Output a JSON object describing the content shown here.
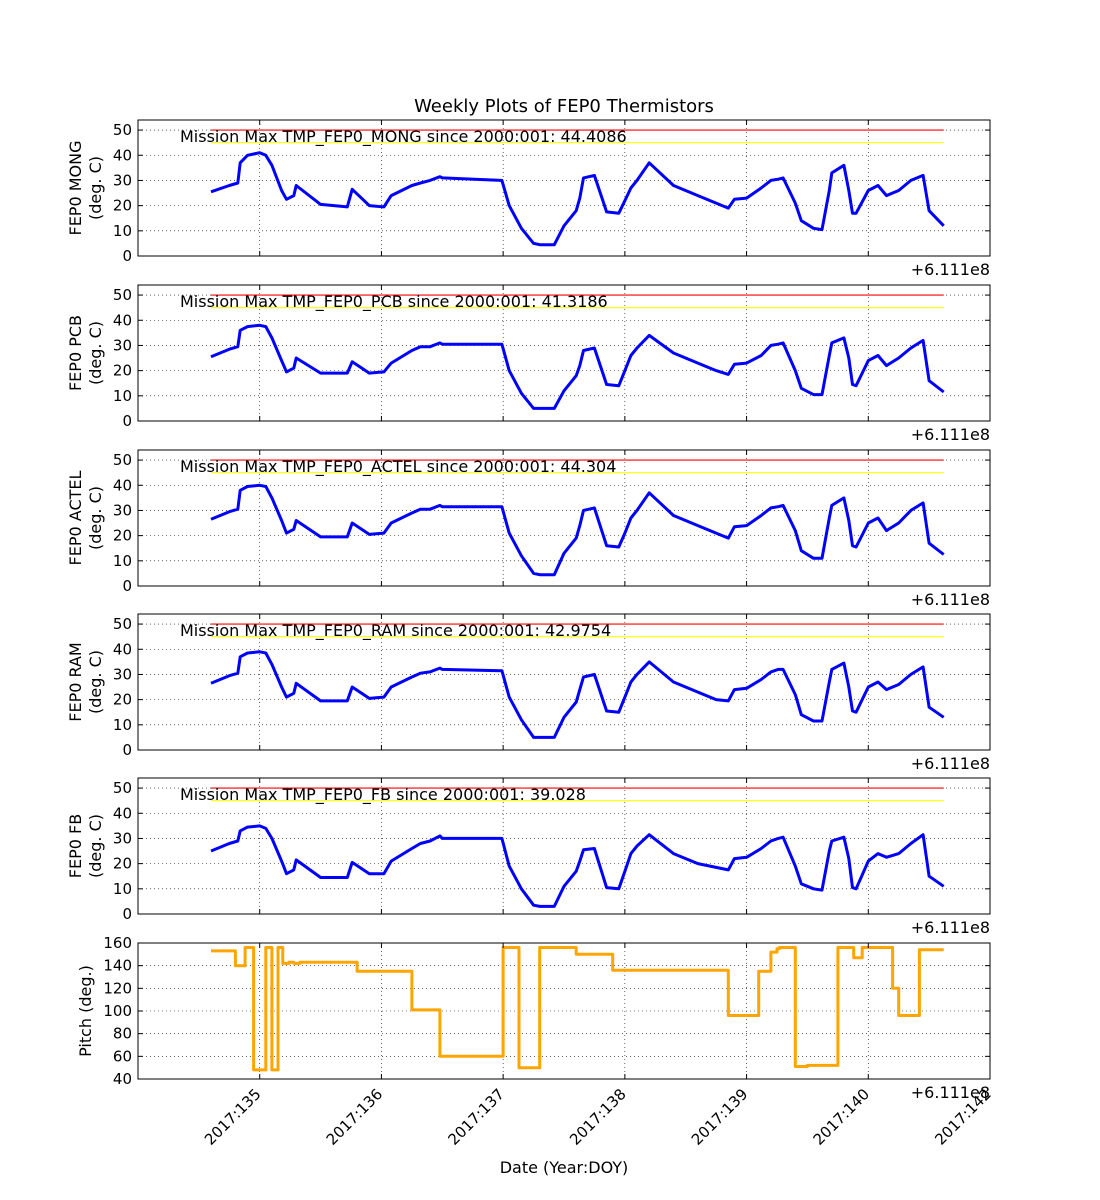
{
  "title": "Weekly Plots of FEP0 Thermistors",
  "xlabel": "Date (Year:DOY)",
  "x_offset_text": "+6.111e8",
  "x_tick_labels": [
    "2017:135",
    "2017:136",
    "2017:137",
    "2017:138",
    "2017:139",
    "2017:140",
    "2017:142"
  ],
  "chart_data": [
    {
      "type": "line",
      "id": "mong",
      "ylabel": [
        "FEP0 MONG",
        "(deg. C)"
      ],
      "annotation": "Mission Max TMP_FEP0_MONG since 2000:001: 44.4086",
      "ylim": [
        0,
        54
      ],
      "yticks": [
        0,
        10,
        20,
        30,
        40,
        50
      ],
      "limit_lines": [
        {
          "value": 50,
          "color": "#ff0000"
        },
        {
          "value": 45,
          "color": "#ffff00"
        }
      ],
      "series_color": "#0000ff",
      "x": [
        134.6,
        134.8,
        134.88,
        134.9,
        134.95,
        135.05,
        135.15,
        135.2,
        135.28,
        135.3,
        135.31,
        135.4,
        135.6,
        135.75,
        135.85,
        135.9,
        136.0,
        136.1,
        136.2,
        136.3,
        136.4,
        136.48,
        136.5,
        136.55,
        136.6,
        136.8,
        136.98,
        136.99,
        137.05,
        137.12,
        137.15,
        137.2,
        137.25,
        137.35,
        137.45,
        137.55,
        137.6,
        137.62,
        137.7,
        137.8,
        137.92,
        137.96,
        138.0,
        138.05,
        138.1,
        138.3,
        138.5,
        138.7,
        138.82,
        138.85,
        138.95,
        139.1,
        139.18,
        139.2,
        139.26,
        139.35,
        139.45,
        139.55,
        139.6,
        139.68,
        139.8,
        139.82,
        139.85,
        139.9,
        140.1,
        140.25,
        140.35,
        140.45,
        140.5,
        140.62
      ],
      "y": [
        25.5,
        28.5,
        29.5,
        37,
        40.5,
        41,
        39.5,
        31,
        23,
        22.5,
        24,
        28,
        20.5,
        26.5,
        20,
        19.5,
        25,
        28,
        29,
        29.5,
        31,
        31,
        30.5,
        30.5,
        30,
        20,
        12,
        5,
        4.5,
        4.5,
        4.5,
        8,
        16,
        18,
        27,
        30.5,
        18,
        17,
        25,
        30,
        37,
        28,
        24,
        22,
        19,
        23,
        27,
        30,
        30.5,
        31,
        31,
        22,
        15,
        13,
        11,
        10.5,
        25,
        36,
        27,
        18,
        17,
        20,
        28,
        29,
        24,
        28,
        30,
        32,
        27,
        18
      ],
      "series_x": [
        134.6,
        134.75,
        134.82,
        134.84,
        134.9,
        135.0,
        135.05,
        135.1,
        135.18,
        135.22,
        135.28,
        135.3,
        135.5,
        135.72,
        135.76,
        135.9,
        136.02,
        136.08,
        136.25,
        136.32,
        136.4,
        136.48,
        136.5,
        136.98,
        136.99,
        137.05,
        137.15,
        137.25,
        137.3,
        137.42,
        137.5,
        137.6,
        137.63,
        137.66,
        137.75,
        137.85,
        137.95,
        138.0,
        138.05,
        138.1,
        138.2,
        138.4,
        138.6,
        138.75,
        138.85,
        138.9,
        139.0,
        139.12,
        139.2,
        139.26,
        139.3,
        139.4,
        139.45,
        139.55,
        139.62,
        139.68,
        139.7,
        139.8,
        139.84,
        139.87,
        139.9,
        140.0,
        140.08,
        140.15,
        140.25,
        140.35,
        140.45,
        140.5,
        140.62
      ],
      "series_y": [
        25.5,
        28,
        29,
        37,
        40,
        41,
        40,
        36,
        26,
        22.5,
        24,
        28,
        20.5,
        19.5,
        26.5,
        20,
        19.5,
        24,
        28,
        29,
        30,
        31.5,
        31,
        30,
        30,
        20,
        11,
        5,
        4.5,
        4.5,
        12,
        18,
        23,
        31,
        32,
        17.5,
        17,
        22,
        27,
        30,
        37,
        28,
        24,
        21,
        19,
        22.5,
        23,
        27,
        30,
        30.5,
        31,
        21,
        14,
        11,
        10.5,
        26,
        33,
        36,
        26,
        17,
        17,
        26,
        28,
        24,
        26,
        30,
        32,
        18,
        12,
        11.5,
        22.5
      ]
    },
    {
      "type": "line",
      "id": "pcb",
      "ylabel": [
        "FEP0 PCB",
        "(deg. C)"
      ],
      "annotation": "Mission Max TMP_FEP0_PCB since 2000:001: 41.3186",
      "ylim": [
        0,
        54
      ],
      "yticks": [
        0,
        10,
        20,
        30,
        40,
        50
      ],
      "limit_lines": [
        {
          "value": 50,
          "color": "#ff0000"
        },
        {
          "value": 45,
          "color": "#ffff00"
        }
      ],
      "series_color": "#0000ff",
      "x": [
        134.6,
        134.82,
        134.85,
        134.95,
        135.08,
        135.22,
        135.3,
        135.38,
        135.48,
        135.52,
        135.56,
        135.7,
        135.73,
        136.15,
        136.2,
        136.22,
        136.45,
        136.58,
        136.65,
        136.72,
        137.0,
        137.15,
        137.35,
        137.6,
        137.65,
        137.75,
        137.8,
        137.85,
        137.9,
        137.95,
        138.0,
        138.1,
        138.2,
        138.3,
        138.7,
        138.85,
        138.95,
        139.05,
        139.1,
        139.15,
        139.25,
        139.35,
        139.55,
        139.65,
        139.75,
        139.83,
        139.85,
        139.95,
        140.02,
        140.08,
        140.15,
        140.25,
        140.45,
        140.55,
        140.62
      ],
      "y": [
        25.5,
        30,
        36,
        38,
        37.5,
        27,
        19.5,
        25,
        19,
        23.5,
        19,
        23,
        24.5,
        30,
        30.5,
        31,
        30.5,
        20,
        15,
        12,
        5,
        5,
        5,
        5,
        9,
        18,
        28,
        29,
        20,
        16,
        14.5,
        20,
        29,
        34,
        19,
        18.5,
        23,
        23.5,
        28,
        29,
        30,
        30,
        31,
        31,
        20,
        14,
        11,
        10.5,
        25,
        33,
        27,
        24,
        29,
        32,
        23
      ],
      "series_x": [
        134.6,
        134.75,
        134.82,
        134.84,
        134.9,
        135.0,
        135.05,
        135.1,
        135.18,
        135.22,
        135.28,
        135.3,
        135.5,
        135.72,
        135.76,
        135.9,
        136.02,
        136.08,
        136.25,
        136.32,
        136.4,
        136.48,
        136.5,
        136.98,
        136.99,
        137.05,
        137.15,
        137.25,
        137.3,
        137.42,
        137.5,
        137.6,
        137.63,
        137.66,
        137.75,
        137.85,
        137.95,
        138.0,
        138.05,
        138.1,
        138.2,
        138.4,
        138.6,
        138.75,
        138.85,
        138.9,
        139.0,
        139.12,
        139.2,
        139.26,
        139.3,
        139.4,
        139.45,
        139.55,
        139.62,
        139.68,
        139.7,
        139.8,
        139.84,
        139.87,
        139.9,
        140.0,
        140.08,
        140.15,
        140.25,
        140.35,
        140.45,
        140.5,
        140.62
      ],
      "series_y": [
        25.5,
        28.5,
        29.5,
        36,
        37.5,
        38,
        37.5,
        33,
        24,
        19.5,
        21,
        25,
        19,
        19,
        23.5,
        19,
        19.5,
        23,
        28,
        29.5,
        29.5,
        31,
        30.5,
        30.5,
        30.5,
        20,
        11,
        5,
        5,
        5,
        12,
        18,
        22,
        28,
        29,
        14.5,
        14,
        20,
        26,
        29,
        34,
        27,
        23,
        20,
        18.5,
        22.5,
        23,
        26,
        30,
        30.5,
        31,
        20,
        13,
        10.5,
        10.5,
        26,
        31,
        33,
        25,
        14.5,
        14,
        24,
        26,
        22,
        25,
        29,
        32,
        16,
        11.5
      ]
    },
    {
      "type": "line",
      "id": "actel",
      "ylabel": [
        "FEP0 ACTEL",
        "(deg. C)"
      ],
      "annotation": "Mission Max TMP_FEP0_ACTEL since 2000:001: 44.304",
      "ylim": [
        0,
        54
      ],
      "yticks": [
        0,
        10,
        20,
        30,
        40,
        50
      ],
      "limit_lines": [
        {
          "value": 50,
          "color": "#ff0000"
        },
        {
          "value": 45,
          "color": "#ffff00"
        }
      ],
      "series_color": "#0000ff",
      "series_x": [
        134.6,
        134.75,
        134.82,
        134.84,
        134.9,
        135.0,
        135.05,
        135.1,
        135.18,
        135.22,
        135.28,
        135.3,
        135.5,
        135.72,
        135.76,
        135.9,
        136.02,
        136.08,
        136.25,
        136.32,
        136.4,
        136.48,
        136.5,
        136.98,
        136.99,
        137.05,
        137.15,
        137.25,
        137.3,
        137.42,
        137.5,
        137.6,
        137.63,
        137.66,
        137.75,
        137.85,
        137.95,
        138.0,
        138.05,
        138.1,
        138.2,
        138.4,
        138.6,
        138.75,
        138.85,
        138.9,
        139.0,
        139.12,
        139.2,
        139.26,
        139.3,
        139.4,
        139.45,
        139.55,
        139.62,
        139.68,
        139.7,
        139.8,
        139.84,
        139.87,
        139.9,
        140.0,
        140.08,
        140.15,
        140.25,
        140.35,
        140.45,
        140.5,
        140.62
      ],
      "series_y": [
        26.5,
        29.5,
        30.5,
        38,
        39.5,
        40,
        39.5,
        35,
        26,
        21,
        22.5,
        26,
        19.5,
        19.5,
        25,
        20.5,
        21,
        25,
        29,
        30.5,
        30.5,
        32,
        31.5,
        31.5,
        31.5,
        21,
        12,
        5,
        4.5,
        4.5,
        13,
        19,
        24,
        30,
        31,
        16,
        15.5,
        21,
        27,
        30,
        37,
        28,
        24,
        21,
        19,
        23.5,
        24,
        28,
        31,
        31.5,
        32,
        22,
        14,
        11,
        11,
        27,
        32,
        35,
        26,
        16,
        15.5,
        25,
        27,
        22,
        25,
        30,
        33,
        17,
        12.5
      ]
    },
    {
      "type": "line",
      "id": "ram",
      "ylabel": [
        "FEP0 RAM",
        "(deg. C)"
      ],
      "annotation": "Mission Max TMP_FEP0_RAM since 2000:001: 42.9754",
      "ylim": [
        0,
        54
      ],
      "yticks": [
        0,
        10,
        20,
        30,
        40,
        50
      ],
      "limit_lines": [
        {
          "value": 50,
          "color": "#ff0000"
        },
        {
          "value": 45,
          "color": "#ffff00"
        }
      ],
      "series_color": "#0000ff",
      "series_x": [
        134.6,
        134.75,
        134.82,
        134.84,
        134.9,
        135.0,
        135.05,
        135.1,
        135.18,
        135.22,
        135.28,
        135.3,
        135.5,
        135.72,
        135.76,
        135.9,
        136.02,
        136.08,
        136.25,
        136.32,
        136.4,
        136.48,
        136.5,
        136.98,
        136.99,
        137.05,
        137.15,
        137.25,
        137.3,
        137.42,
        137.5,
        137.6,
        137.63,
        137.66,
        137.75,
        137.85,
        137.95,
        138.0,
        138.05,
        138.1,
        138.2,
        138.4,
        138.6,
        138.75,
        138.85,
        138.9,
        139.0,
        139.12,
        139.2,
        139.26,
        139.3,
        139.4,
        139.45,
        139.55,
        139.62,
        139.68,
        139.7,
        139.8,
        139.84,
        139.87,
        139.9,
        140.0,
        140.08,
        140.15,
        140.25,
        140.35,
        140.45,
        140.5,
        140.62
      ],
      "series_y": [
        26.5,
        29.5,
        30.5,
        37,
        38.5,
        39,
        38.5,
        34,
        25,
        21,
        22.5,
        26.5,
        19.5,
        19.5,
        25,
        20.5,
        21,
        25,
        29,
        30.5,
        31,
        32.5,
        32,
        31.5,
        31.5,
        21,
        12,
        5,
        5,
        5,
        13,
        19,
        24,
        29,
        30,
        15.5,
        15,
        21,
        27,
        30,
        35,
        27,
        23,
        20,
        19.5,
        24,
        24.5,
        28,
        31,
        32,
        32,
        22,
        14,
        11.5,
        11.5,
        27,
        32,
        34.5,
        25,
        15.5,
        15,
        25,
        27,
        24,
        26,
        30,
        33,
        17,
        13
      ]
    },
    {
      "type": "line",
      "id": "fb",
      "ylabel": [
        "FEP0 FB",
        "(deg. C)"
      ],
      "annotation": "Mission Max TMP_FEP0_FB since 2000:001: 39.028",
      "ylim": [
        0,
        54
      ],
      "yticks": [
        0,
        10,
        20,
        30,
        40,
        50
      ],
      "limit_lines": [
        {
          "value": 50,
          "color": "#ff0000"
        },
        {
          "value": 45,
          "color": "#ffff00"
        }
      ],
      "series_color": "#0000ff",
      "series_x": [
        134.6,
        134.75,
        134.82,
        134.84,
        134.9,
        135.0,
        135.05,
        135.1,
        135.18,
        135.22,
        135.28,
        135.3,
        135.5,
        135.72,
        135.76,
        135.9,
        136.02,
        136.08,
        136.25,
        136.32,
        136.4,
        136.48,
        136.5,
        136.98,
        136.99,
        137.05,
        137.15,
        137.25,
        137.3,
        137.42,
        137.5,
        137.6,
        137.63,
        137.66,
        137.75,
        137.85,
        137.95,
        138.0,
        138.05,
        138.1,
        138.2,
        138.4,
        138.6,
        138.75,
        138.85,
        138.9,
        139.0,
        139.12,
        139.2,
        139.26,
        139.3,
        139.4,
        139.45,
        139.55,
        139.62,
        139.68,
        139.7,
        139.8,
        139.84,
        139.87,
        139.9,
        140.0,
        140.08,
        140.15,
        140.25,
        140.35,
        140.45,
        140.5,
        140.62
      ],
      "series_y": [
        25,
        28,
        29,
        33,
        34.5,
        35,
        34,
        30,
        21,
        16,
        17.5,
        21.5,
        14.5,
        14.5,
        20.5,
        16,
        16,
        21,
        26,
        28,
        29,
        31,
        30,
        30,
        30,
        19,
        10,
        3.5,
        3,
        3,
        11,
        17,
        21,
        25.5,
        26,
        10.5,
        10,
        17,
        24,
        27,
        31.5,
        24,
        20,
        18.5,
        17.5,
        22,
        22.5,
        26,
        29,
        30,
        30.5,
        19,
        12,
        10,
        9.5,
        25,
        29,
        30.5,
        22,
        10.5,
        10,
        21,
        24,
        22.5,
        24,
        28,
        31.5,
        15,
        11
      ]
    },
    {
      "type": "line",
      "id": "pitch",
      "ylabel": [
        "Pitch (deg.)"
      ],
      "ylim": [
        40,
        160
      ],
      "yticks": [
        40,
        60,
        80,
        100,
        120,
        140,
        160
      ],
      "series_color": "#ffa500",
      "series_x": [
        134.6,
        134.8,
        134.8,
        134.88,
        134.88,
        134.95,
        134.95,
        135.05,
        135.05,
        135.1,
        135.1,
        135.15,
        135.15,
        135.19,
        135.19,
        135.24,
        135.24,
        135.28,
        135.28,
        135.33,
        135.33,
        135.8,
        135.8,
        135.85,
        135.85,
        136.25,
        136.25,
        136.48,
        136.48,
        137.0,
        137.0,
        137.13,
        137.13,
        137.3,
        137.3,
        137.6,
        137.6,
        137.9,
        137.9,
        138.5,
        138.5,
        138.85,
        138.85,
        139.1,
        139.1,
        139.2,
        139.2,
        139.25,
        139.25,
        139.27,
        139.27,
        139.4,
        139.4,
        139.5,
        139.5,
        139.75,
        139.75,
        139.88,
        139.88,
        139.95,
        139.95,
        140.2,
        140.2,
        140.25,
        140.25,
        140.3,
        140.3,
        140.42,
        140.42,
        140.62
      ],
      "series_y": [
        153,
        153,
        140,
        140,
        156,
        156,
        48,
        48,
        156,
        156,
        48,
        48,
        156,
        156,
        142,
        142,
        143,
        143,
        142,
        142,
        143,
        143,
        135,
        135,
        135,
        135,
        101,
        101,
        60,
        60,
        156,
        156,
        50,
        50,
        156,
        156,
        150,
        150,
        136,
        136,
        136,
        136,
        96,
        96,
        135,
        135,
        152,
        152,
        155,
        155,
        156,
        156,
        51,
        51,
        52,
        52,
        156,
        156,
        147,
        147,
        156,
        156,
        120,
        120,
        96,
        96,
        96,
        96,
        154,
        154
      ]
    }
  ],
  "x_domain": [
    134.0,
    141.0
  ]
}
